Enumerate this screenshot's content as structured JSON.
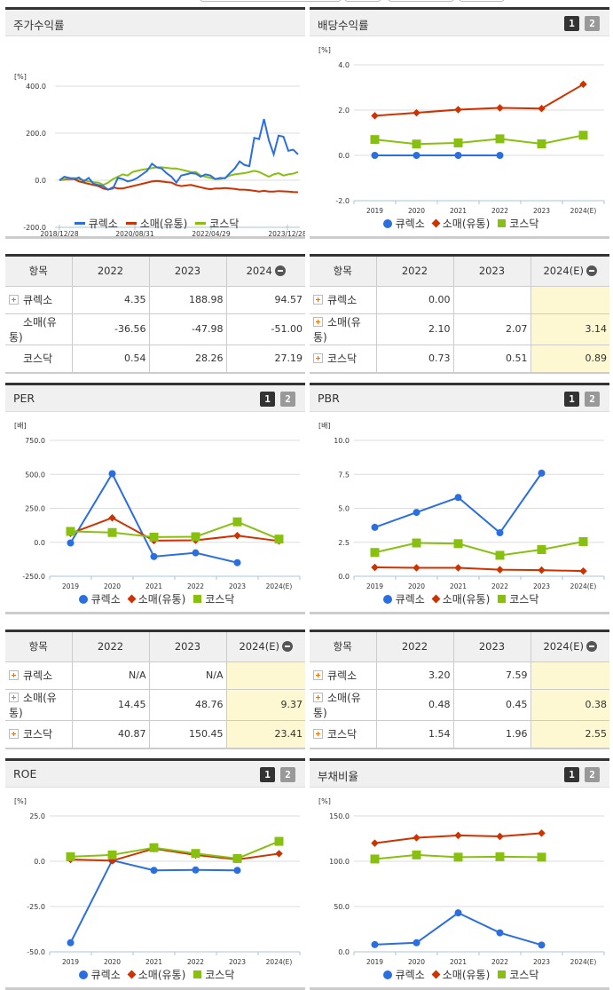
{
  "colors": {
    "company": "#2a6ee0",
    "industry": "#cc3300",
    "kosdaq": "#88c010",
    "estimate_bg": "#fdf7d2",
    "header_bg": "#f0f0f0"
  },
  "legend": {
    "company": "큐렉소",
    "industry": "소매(유통)",
    "kosdaq": "코스닥"
  },
  "pager": {
    "p1": "1",
    "p2": "2"
  },
  "panels": {
    "stock_return": {
      "title": "주가수익률",
      "unit": "[%]",
      "yticks": [
        "400.0",
        "200.0",
        "0.0",
        "-200.0"
      ],
      "xticks": [
        "2018/12/28",
        "2020/08/31",
        "2022/04/29",
        "2023/12/28"
      ]
    },
    "dividend": {
      "title": "배당수익률",
      "unit": "[%]",
      "yticks": [
        "4.0",
        "2.0",
        "0.0",
        "-2.0"
      ]
    },
    "per": {
      "title": "PER",
      "unit": "[배]",
      "yticks": [
        "750.0",
        "500.0",
        "250.0",
        "0.0",
        "-250.0"
      ]
    },
    "pbr": {
      "title": "PBR",
      "unit": "[배]",
      "yticks": [
        "10.0",
        "7.5",
        "5.0",
        "2.5",
        "0.0"
      ]
    },
    "roe": {
      "title": "ROE",
      "unit": "[%]",
      "yticks": [
        "25.0",
        "0.0",
        "-25.0",
        "-50.0"
      ]
    },
    "debt": {
      "title": "부채비율",
      "unit": "[%]",
      "yticks": [
        "150.0",
        "100.0",
        "50.0",
        "0.0"
      ]
    },
    "years": [
      "2019",
      "2020",
      "2021",
      "2022",
      "2023",
      "2024(E)"
    ]
  },
  "tables": {
    "stock_return": {
      "headers": [
        "항목",
        "2022",
        "2023",
        "2024"
      ],
      "rows": [
        {
          "label": "큐렉소",
          "expand": true,
          "values": [
            "4.35",
            "188.98",
            "94.57"
          ]
        },
        {
          "label": "소매(유통)",
          "expand": false,
          "values": [
            "-36.56",
            "-47.98",
            "-51.00"
          ]
        },
        {
          "label": "코스닥",
          "expand": false,
          "values": [
            "0.54",
            "28.26",
            "27.19"
          ]
        }
      ]
    },
    "dividend": {
      "headers": [
        "항목",
        "2022",
        "2023",
        "2024(E)"
      ],
      "rows": [
        {
          "label": "큐렉소",
          "expand": true,
          "values": [
            "0.00",
            "",
            ""
          ]
        },
        {
          "label": "소매(유통)",
          "expand": true,
          "values": [
            "2.10",
            "2.07",
            "3.14"
          ]
        },
        {
          "label": "코스닥",
          "expand": true,
          "values": [
            "0.73",
            "0.51",
            "0.89"
          ]
        }
      ]
    },
    "per": {
      "headers": [
        "항목",
        "2022",
        "2023",
        "2024(E)"
      ],
      "rows": [
        {
          "label": "큐렉소",
          "expand": true,
          "values": [
            "N/A",
            "N/A",
            ""
          ]
        },
        {
          "label": "소매(유통)",
          "expand": true,
          "values": [
            "14.45",
            "48.76",
            "9.37"
          ]
        },
        {
          "label": "코스닥",
          "expand": true,
          "values": [
            "40.87",
            "150.45",
            "23.41"
          ]
        }
      ]
    },
    "pbr": {
      "headers": [
        "항목",
        "2022",
        "2023",
        "2024(E)"
      ],
      "rows": [
        {
          "label": "큐렉소",
          "expand": true,
          "values": [
            "3.20",
            "7.59",
            ""
          ]
        },
        {
          "label": "소매(유통)",
          "expand": true,
          "values": [
            "0.48",
            "0.45",
            "0.38"
          ]
        },
        {
          "label": "코스닥",
          "expand": true,
          "values": [
            "1.54",
            "1.96",
            "2.55"
          ]
        }
      ]
    }
  },
  "chart_data": [
    {
      "type": "line",
      "title": "주가수익률",
      "ylabel": "[%]",
      "ylim": [
        -200,
        400
      ],
      "x": [
        "2018/12/28",
        "2020/08/31",
        "2022/04/29",
        "2023/12/28"
      ],
      "series": [
        {
          "name": "큐렉소",
          "values": [
            0,
            15,
            10,
            5,
            12,
            -5,
            10,
            -15,
            -20,
            -25,
            -40,
            -35,
            10,
            5,
            -5,
            0,
            10,
            25,
            40,
            70,
            55,
            50,
            30,
            15,
            -10,
            20,
            25,
            30,
            28,
            15,
            25,
            20,
            5,
            10,
            8,
            30,
            50,
            80,
            65,
            60,
            180,
            175,
            260,
            170,
            110,
            190,
            185,
            125,
            130,
            110
          ]
        },
        {
          "name": "소매(유통)",
          "values": [
            0,
            3,
            5,
            5,
            -5,
            -10,
            -15,
            -20,
            -25,
            -35,
            -40,
            -30,
            -35,
            -35,
            -30,
            -25,
            -20,
            -15,
            -10,
            -5,
            -3,
            -5,
            -8,
            -10,
            -20,
            -25,
            -22,
            -20,
            -25,
            -30,
            -35,
            -38,
            -35,
            -35,
            -33,
            -35,
            -37,
            -40,
            -40,
            -42,
            -45,
            -48,
            -45,
            -48,
            -48,
            -46,
            -47,
            -48,
            -50,
            -51
          ]
        },
        {
          "name": "코스닥",
          "values": [
            0,
            5,
            8,
            10,
            5,
            0,
            -5,
            -8,
            -10,
            -20,
            -10,
            5,
            15,
            25,
            20,
            35,
            40,
            45,
            48,
            52,
            55,
            55,
            53,
            50,
            50,
            45,
            40,
            35,
            35,
            20,
            15,
            10,
            5,
            5,
            10,
            20,
            25,
            28,
            30,
            35,
            40,
            35,
            25,
            15,
            25,
            30,
            20,
            25,
            28,
            35
          ]
        }
      ]
    },
    {
      "type": "line",
      "title": "배당수익률",
      "ylabel": "[%]",
      "ylim": [
        -2,
        4
      ],
      "x": [
        "2019",
        "2020",
        "2021",
        "2022",
        "2023",
        "2024(E)"
      ],
      "series": [
        {
          "name": "큐렉소",
          "values": [
            0.0,
            0.0,
            0.0,
            0.0,
            null,
            null
          ]
        },
        {
          "name": "소매(유통)",
          "values": [
            1.75,
            1.88,
            2.02,
            2.1,
            2.07,
            3.14
          ]
        },
        {
          "name": "코스닥",
          "values": [
            0.7,
            0.5,
            0.55,
            0.73,
            0.51,
            0.89
          ]
        }
      ]
    },
    {
      "type": "line",
      "title": "PER",
      "ylabel": "[배]",
      "ylim": [
        -250,
        750
      ],
      "x": [
        "2019",
        "2020",
        "2021",
        "2022",
        "2023",
        "2024(E)"
      ],
      "series": [
        {
          "name": "큐렉소",
          "values": [
            -5,
            505,
            -105,
            -78,
            -150,
            null
          ]
        },
        {
          "name": "소매(유통)",
          "values": [
            65,
            180,
            12,
            14.45,
            48.76,
            9.37
          ]
        },
        {
          "name": "코스닥",
          "values": [
            80,
            72,
            38,
            40.87,
            150.45,
            23.41
          ]
        }
      ]
    },
    {
      "type": "line",
      "title": "PBR",
      "ylabel": "[배]",
      "ylim": [
        0,
        10
      ],
      "x": [
        "2019",
        "2020",
        "2021",
        "2022",
        "2023",
        "2024(E)"
      ],
      "series": [
        {
          "name": "큐렉소",
          "values": [
            3.6,
            4.7,
            5.8,
            3.2,
            7.59,
            null
          ]
        },
        {
          "name": "소매(유통)",
          "values": [
            0.65,
            0.62,
            0.62,
            0.48,
            0.45,
            0.38
          ]
        },
        {
          "name": "코스닥",
          "values": [
            1.75,
            2.45,
            2.4,
            1.54,
            1.96,
            2.55
          ]
        }
      ]
    },
    {
      "type": "line",
      "title": "ROE",
      "ylabel": "[%]",
      "ylim": [
        -50,
        25
      ],
      "x": [
        "2019",
        "2020",
        "2021",
        "2022",
        "2023",
        "2024(E)"
      ],
      "series": [
        {
          "name": "큐렉소",
          "values": [
            -45,
            0.5,
            -5,
            -4.8,
            -5,
            null
          ]
        },
        {
          "name": "소매(유통)",
          "values": [
            1,
            0.3,
            7,
            3.5,
            1,
            4.2
          ]
        },
        {
          "name": "코스닥",
          "values": [
            2.5,
            3.5,
            7.5,
            4.3,
            1.5,
            11
          ]
        }
      ]
    },
    {
      "type": "line",
      "title": "부채비율",
      "ylabel": "[%]",
      "ylim": [
        0,
        150
      ],
      "x": [
        "2019",
        "2020",
        "2021",
        "2022",
        "2023",
        "2024(E)"
      ],
      "series": [
        {
          "name": "큐렉소",
          "values": [
            8,
            10,
            43,
            21,
            7.5,
            null
          ]
        },
        {
          "name": "소매(유통)",
          "values": [
            120,
            126,
            128.5,
            127.5,
            131,
            null
          ]
        },
        {
          "name": "코스닥",
          "values": [
            102.5,
            107,
            104.5,
            105,
            104.5,
            null
          ]
        }
      ]
    }
  ]
}
